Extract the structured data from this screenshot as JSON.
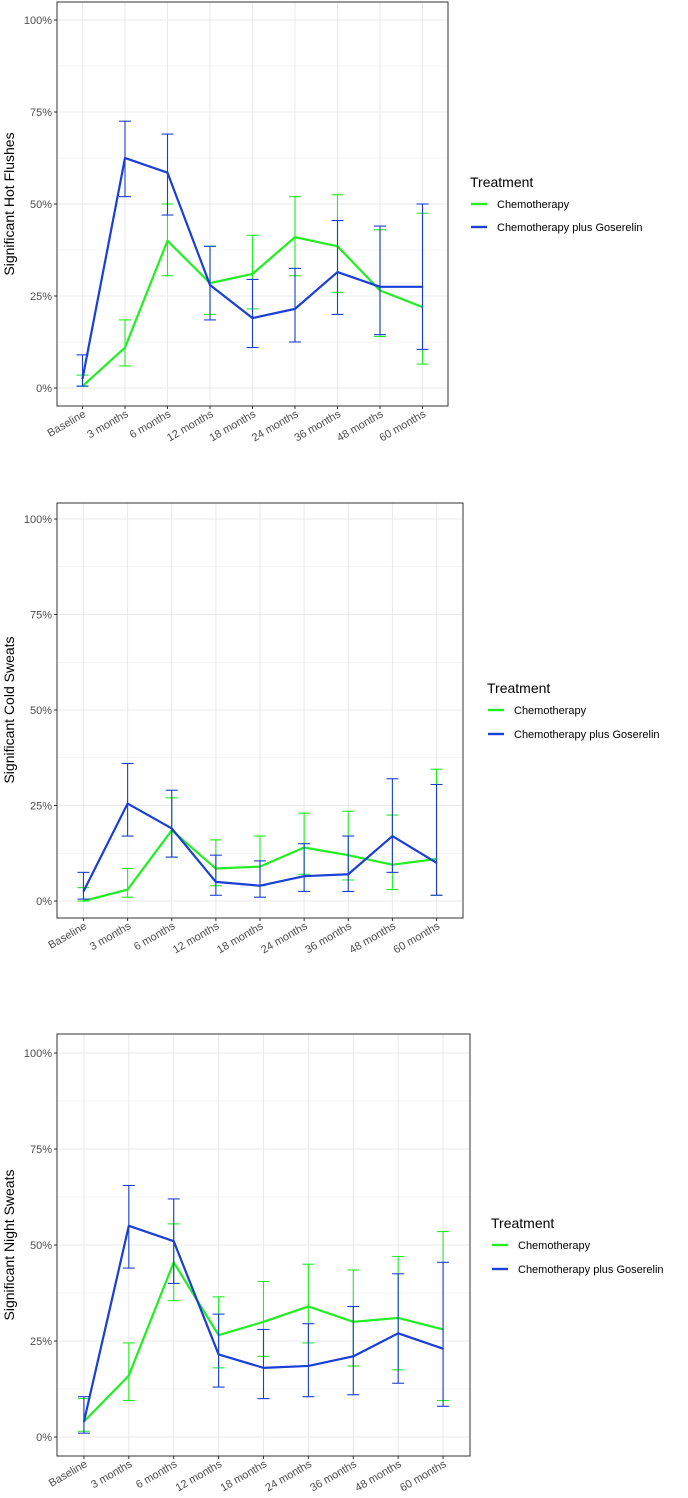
{
  "colors": {
    "chemotherapy": "#22ee22",
    "chemotherapy_plus_goserelin": "#1a3fd6",
    "grid": "#ebebeb",
    "panel_border": "#333333"
  },
  "chart_data": [
    {
      "type": "line",
      "ylabel": "Significant Hot Flushes",
      "categories": [
        "Baseline",
        "3 months",
        "6 months",
        "12 months",
        "18 months",
        "24 months",
        "36 months",
        "48 months",
        "60 months"
      ],
      "ylim": [
        0,
        100
      ],
      "yticks": [
        0,
        25,
        50,
        75,
        100
      ],
      "ytick_labels": [
        "0%",
        "25%",
        "50%",
        "75%",
        "100%"
      ],
      "grid": true,
      "legend": {
        "title": "Treatment",
        "position": "right"
      },
      "series": [
        {
          "name": "Chemotherapy",
          "values": [
            0.5,
            11,
            40,
            28.5,
            31,
            41,
            38.5,
            26.5,
            22
          ],
          "lower": [
            0.5,
            6,
            30.5,
            20,
            21.5,
            30.5,
            26,
            14,
            6.5
          ],
          "upper": [
            3.5,
            18.5,
            50,
            38.5,
            41.5,
            52,
            52.5,
            43,
            47.5
          ]
        },
        {
          "name": "Chemotherapy plus Goserelin",
          "values": [
            2.5,
            62.5,
            58.5,
            28,
            19,
            21.5,
            31.5,
            27.5,
            27.5
          ],
          "lower": [
            0.5,
            52,
            47,
            18.5,
            11,
            12.5,
            20,
            14.5,
            10.5
          ],
          "upper": [
            9,
            72.5,
            69,
            38.5,
            29.5,
            32.5,
            45.5,
            44,
            50
          ]
        }
      ]
    },
    {
      "type": "line",
      "ylabel": "Significant Cold Sweats",
      "categories": [
        "Baseline",
        "3 months",
        "6 months",
        "12 months",
        "18 months",
        "24 months",
        "36 months",
        "48 months",
        "60 months"
      ],
      "ylim": [
        0,
        100
      ],
      "yticks": [
        0,
        25,
        50,
        75,
        100
      ],
      "ytick_labels": [
        "0%",
        "25%",
        "50%",
        "75%",
        "100%"
      ],
      "grid": true,
      "legend": {
        "title": "Treatment",
        "position": "right"
      },
      "series": [
        {
          "name": "Chemotherapy",
          "values": [
            0,
            3,
            18.5,
            8.5,
            9,
            14,
            12,
            9.5,
            11
          ],
          "lower": [
            0,
            1,
            11.5,
            4,
            4,
            7,
            5.5,
            3,
            1.5
          ],
          "upper": [
            3.5,
            8.5,
            27,
            16,
            17,
            23,
            23.5,
            22.5,
            34.5
          ]
        },
        {
          "name": "Chemotherapy plus Goserelin",
          "values": [
            2.5,
            25.5,
            19,
            5,
            4,
            6.5,
            7,
            17,
            10
          ],
          "lower": [
            0.5,
            17,
            11.5,
            1.5,
            1,
            2.5,
            2.5,
            7.5,
            1.5
          ],
          "upper": [
            7.5,
            36,
            29,
            12,
            10.5,
            15,
            17,
            32,
            30.5
          ]
        }
      ]
    },
    {
      "type": "line",
      "ylabel": "Significant Night Sweats",
      "categories": [
        "Baseline",
        "3 months",
        "6 months",
        "12 months",
        "18 months",
        "24 months",
        "36 months",
        "48 months",
        "60 months"
      ],
      "ylim": [
        0,
        100
      ],
      "yticks": [
        0,
        25,
        50,
        75,
        100
      ],
      "ytick_labels": [
        "0%",
        "25%",
        "50%",
        "75%",
        "100%"
      ],
      "grid": true,
      "legend": {
        "title": "Treatment",
        "position": "right"
      },
      "series": [
        {
          "name": "Chemotherapy",
          "values": [
            4,
            16,
            45.5,
            26.5,
            30,
            34,
            30,
            31,
            28
          ],
          "lower": [
            1.5,
            9.5,
            35.5,
            18,
            21,
            24.5,
            18.5,
            17.5,
            9.5
          ],
          "upper": [
            10,
            24.5,
            55.5,
            36.5,
            40.5,
            45,
            43.5,
            47,
            53.5
          ]
        },
        {
          "name": "Chemotherapy plus Goserelin",
          "values": [
            4,
            55,
            51,
            21.5,
            18,
            18.5,
            21,
            27,
            23
          ],
          "lower": [
            1,
            44,
            40,
            13,
            10,
            10.5,
            11,
            14,
            8
          ],
          "upper": [
            10.5,
            65.5,
            62,
            32,
            28,
            29.5,
            34,
            42.5,
            45.5
          ]
        }
      ]
    }
  ]
}
